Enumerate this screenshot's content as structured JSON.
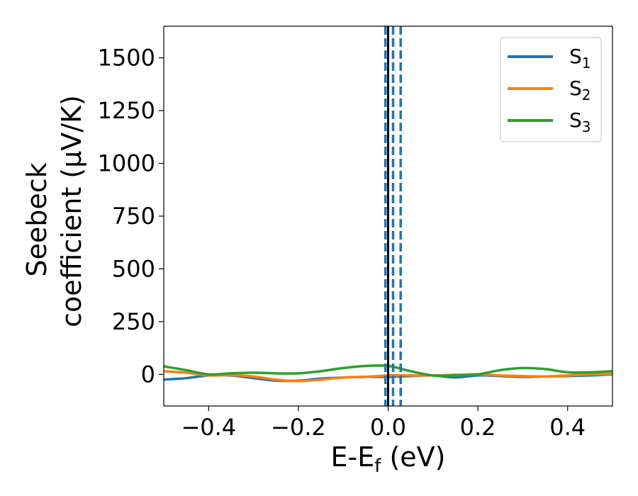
{
  "chart_data": {
    "type": "line",
    "title": "",
    "xlabel": "E-E",
    "xlabel_sub": "f",
    "xlabel_unit": " (eV)",
    "ylabel_line1": "Seebeck",
    "ylabel_line2": "coefficient  (μV/K)",
    "xlim": [
      -0.5,
      0.5
    ],
    "ylim": [
      -150,
      1650
    ],
    "xticks": [
      -0.4,
      -0.2,
      0.0,
      0.2,
      0.4
    ],
    "xtick_labels": [
      "−0.4",
      "−0.2",
      "0.0",
      "0.2",
      "0.4"
    ],
    "yticks": [
      0,
      250,
      500,
      750,
      1000,
      1250,
      1500
    ],
    "ytick_labels": [
      "0",
      "250",
      "500",
      "750",
      "1000",
      "1250",
      "1500"
    ],
    "grid": false,
    "legend_position": "top-right",
    "series": [
      {
        "name": "S",
        "name_sub": "1",
        "color": "#1f77b4",
        "x": [
          -0.5,
          -0.45,
          -0.4,
          -0.35,
          -0.3,
          -0.25,
          -0.2,
          -0.15,
          -0.1,
          -0.05,
          0.0,
          0.05,
          0.1,
          0.15,
          0.2,
          0.25,
          0.3,
          0.35,
          0.4,
          0.45,
          0.5
        ],
        "y": [
          -25,
          -18,
          -5,
          -5,
          -18,
          -30,
          -30,
          -20,
          -15,
          -12,
          -12,
          -8,
          -5,
          -15,
          -5,
          -8,
          -12,
          -10,
          -8,
          -5,
          0
        ]
      },
      {
        "name": "S",
        "name_sub": "2",
        "color": "#ff7f0e",
        "x": [
          -0.5,
          -0.45,
          -0.4,
          -0.35,
          -0.3,
          -0.25,
          -0.2,
          -0.15,
          -0.1,
          -0.05,
          0.0,
          0.05,
          0.1,
          0.15,
          0.2,
          0.25,
          0.3,
          0.35,
          0.4,
          0.45,
          0.5
        ],
        "y": [
          15,
          8,
          -5,
          -3,
          -10,
          -25,
          -32,
          -25,
          -15,
          -12,
          -5,
          -5,
          -5,
          -2,
          0,
          -5,
          -8,
          -10,
          -5,
          0,
          2
        ]
      },
      {
        "name": "S",
        "name_sub": "3",
        "color": "#2ca02c",
        "x": [
          -0.5,
          -0.45,
          -0.4,
          -0.35,
          -0.3,
          -0.25,
          -0.2,
          -0.15,
          -0.1,
          -0.05,
          0.0,
          0.05,
          0.1,
          0.15,
          0.2,
          0.25,
          0.3,
          0.35,
          0.4,
          0.45,
          0.5
        ],
        "y": [
          38,
          20,
          0,
          5,
          8,
          5,
          5,
          15,
          30,
          40,
          40,
          15,
          -5,
          -5,
          0,
          20,
          30,
          25,
          10,
          10,
          15
        ]
      }
    ],
    "vertical_lines": [
      {
        "x": -0.006,
        "color": "#1f77b4",
        "style": "dashed"
      },
      {
        "x": 0.011,
        "color": "#1f77b4",
        "style": "dashed"
      },
      {
        "x": 0.028,
        "color": "#1f77b4",
        "style": "dashed"
      },
      {
        "x": 0.0,
        "color": "#000000",
        "style": "solid"
      }
    ]
  }
}
